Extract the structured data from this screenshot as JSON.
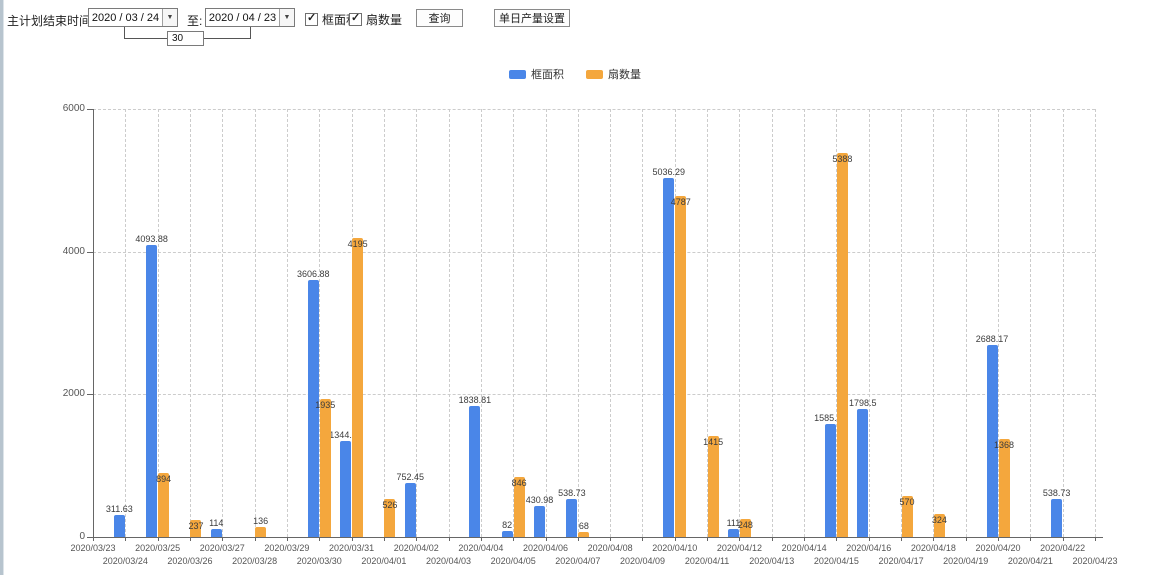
{
  "toolbar": {
    "plan_end_label": "主计划结束时间:",
    "date_from": "2020 / 03 / 24",
    "to_label": "至:",
    "date_to": "2020 / 04 / 23",
    "interval_value": "30",
    "checkbox_frame_area_label": "框面积",
    "checkbox_fan_count_label": "扇数量",
    "query_button_label": "查询",
    "daily_output_button_label": "单日产量设置",
    "dropdown_glyph": "▼",
    "check_glyph": "✓"
  },
  "legend": [
    {
      "label": "框面积",
      "color": "#4a86e8"
    },
    {
      "label": "扇数量",
      "color": "#f4a73d"
    }
  ],
  "chart_data": {
    "type": "bar",
    "title": "",
    "xlabel": "",
    "ylabel": "",
    "ylim": [
      0,
      6000
    ],
    "yticks": [
      0,
      2000,
      4000,
      6000
    ],
    "grid": "dashed",
    "legend_position": "top-center",
    "categories": [
      "2020/03/23",
      "2020/03/24",
      "2020/03/25",
      "2020/03/26",
      "2020/03/27",
      "2020/03/28",
      "2020/03/29",
      "2020/03/30",
      "2020/03/31",
      "2020/04/01",
      "2020/04/02",
      "2020/04/03",
      "2020/04/04",
      "2020/04/05",
      "2020/04/06",
      "2020/04/07",
      "2020/04/08",
      "2020/04/09",
      "2020/04/10",
      "2020/04/11",
      "2020/04/12",
      "2020/04/13",
      "2020/04/14",
      "2020/04/15",
      "2020/04/16",
      "2020/04/17",
      "2020/04/18",
      "2020/04/19",
      "2020/04/20",
      "2020/04/21",
      "2020/04/22",
      "2020/04/23"
    ],
    "series": [
      {
        "name": "框面积",
        "color": "#4a86e8",
        "values": [
          null,
          311.63,
          4093.88,
          null,
          114,
          null,
          null,
          3606.88,
          1344.95,
          null,
          752.45,
          null,
          1838.81,
          82,
          430.98,
          538.73,
          null,
          null,
          5036.29,
          null,
          111,
          null,
          null,
          1585.96,
          1798.5,
          null,
          null,
          null,
          2688.17,
          null,
          538.73,
          null
        ]
      },
      {
        "name": "扇数量",
        "color": "#f4a73d",
        "values": [
          null,
          null,
          894,
          237,
          null,
          136,
          null,
          1935,
          4195,
          526,
          null,
          null,
          null,
          846,
          null,
          68,
          null,
          null,
          4787,
          1415,
          248,
          null,
          null,
          5388,
          null,
          570,
          324,
          null,
          1368,
          null,
          null,
          null
        ]
      }
    ]
  }
}
